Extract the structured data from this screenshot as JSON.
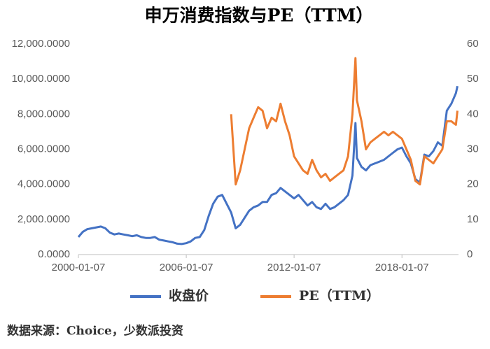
{
  "chart_data": {
    "type": "line",
    "title": "申万消费指数与PE（TTM）",
    "note": "数据来源：Choice，少数派投资",
    "x": [
      "2000-01-07",
      "2000-04-07",
      "2000-07-07",
      "2000-10-07",
      "2001-01-07",
      "2001-04-07",
      "2001-07-07",
      "2001-10-07",
      "2002-01-07",
      "2002-04-07",
      "2002-07-07",
      "2002-10-07",
      "2003-01-07",
      "2003-04-07",
      "2003-07-07",
      "2003-10-07",
      "2004-01-07",
      "2004-04-07",
      "2004-07-07",
      "2004-10-07",
      "2005-01-07",
      "2005-04-07",
      "2005-07-07",
      "2005-10-07",
      "2006-01-07",
      "2006-04-07",
      "2006-07-07",
      "2006-10-07",
      "2007-01-07",
      "2007-04-07",
      "2007-07-07",
      "2007-10-07",
      "2008-01-07",
      "2008-04-07",
      "2008-07-07",
      "2008-10-07",
      "2009-01-07",
      "2009-04-07",
      "2009-07-07",
      "2009-10-07",
      "2010-01-07",
      "2010-04-07",
      "2010-07-07",
      "2010-10-07",
      "2011-01-07",
      "2011-04-07",
      "2011-07-07",
      "2011-10-07",
      "2012-01-07",
      "2012-04-07",
      "2012-07-07",
      "2012-10-07",
      "2013-01-07",
      "2013-04-07",
      "2013-07-07",
      "2013-10-07",
      "2014-01-07",
      "2014-04-07",
      "2014-07-07",
      "2014-10-07",
      "2015-01-07",
      "2015-04-07",
      "2015-06-07",
      "2015-07-07",
      "2015-10-07",
      "2016-01-07",
      "2016-04-07",
      "2016-07-07",
      "2016-10-07",
      "2017-01-07",
      "2017-04-07",
      "2017-07-07",
      "2017-10-07",
      "2018-01-07",
      "2018-04-07",
      "2018-07-07",
      "2018-10-07",
      "2019-01-07",
      "2019-04-07",
      "2019-07-07",
      "2019-10-07",
      "2020-01-07",
      "2020-04-07",
      "2020-07-07",
      "2020-10-07",
      "2021-01-07",
      "2021-02-07"
    ],
    "series": [
      {
        "name": "收盘价",
        "color": "#4472c4",
        "values": [
          1000,
          1300,
          1450,
          1500,
          1550,
          1600,
          1500,
          1250,
          1150,
          1200,
          1150,
          1100,
          1050,
          1100,
          1000,
          950,
          950,
          1000,
          850,
          800,
          750,
          700,
          620,
          600,
          650,
          750,
          950,
          1000,
          1400,
          2200,
          2900,
          3300,
          3400,
          2900,
          2400,
          1500,
          1700,
          2100,
          2500,
          2700,
          2800,
          3000,
          3000,
          3400,
          3500,
          3800,
          3600,
          3400,
          3200,
          3400,
          3100,
          2800,
          3000,
          2700,
          2600,
          2900,
          2600,
          2700,
          2900,
          3100,
          3400,
          4500,
          7500,
          5500,
          5000,
          4800,
          5100,
          5200,
          5300,
          5400,
          5600,
          5800,
          6000,
          6100,
          5600,
          5200,
          4300,
          4100,
          5700,
          5600,
          5900,
          6400,
          6200,
          8200,
          8600,
          9200,
          9600
        ]
      },
      {
        "name": "PE（TTM）",
        "color": "#ed7d31",
        "axis": "y2",
        "values": [
          null,
          null,
          null,
          null,
          null,
          null,
          null,
          null,
          null,
          null,
          null,
          null,
          null,
          null,
          null,
          null,
          null,
          null,
          null,
          null,
          null,
          null,
          null,
          null,
          null,
          null,
          null,
          null,
          null,
          null,
          null,
          null,
          null,
          null,
          40,
          20,
          24,
          30,
          36,
          39,
          42,
          41,
          36,
          39,
          38,
          43,
          38,
          34,
          28,
          26,
          24,
          23,
          27,
          24,
          22,
          23,
          21,
          22,
          23,
          24,
          28,
          40,
          56,
          44,
          38,
          30,
          32,
          33,
          34,
          35,
          34,
          35,
          34,
          33,
          30,
          27,
          21,
          20,
          28,
          27,
          26,
          28,
          30,
          38,
          38,
          37,
          41
        ]
      }
    ],
    "xlim": [
      "2000-01-07",
      "2021-03-01"
    ],
    "xticks": [
      "2000-01-07",
      "2006-01-07",
      "2012-01-07",
      "2018-01-07"
    ],
    "ylim": [
      0,
      12000
    ],
    "yticks": [
      {
        "value": 0,
        "label": "0.0000"
      },
      {
        "value": 2000,
        "label": "2,000.0000"
      },
      {
        "value": 4000,
        "label": "4,000.0000"
      },
      {
        "value": 6000,
        "label": "6,000.0000"
      },
      {
        "value": 8000,
        "label": "8,000.0000"
      },
      {
        "value": 10000,
        "label": "10,000.0000"
      },
      {
        "value": 12000,
        "label": "12,000.0000"
      }
    ],
    "y2lim": [
      0,
      60
    ],
    "y2ticks": [
      0,
      10,
      20,
      30,
      40,
      50,
      60
    ],
    "grid": false
  }
}
